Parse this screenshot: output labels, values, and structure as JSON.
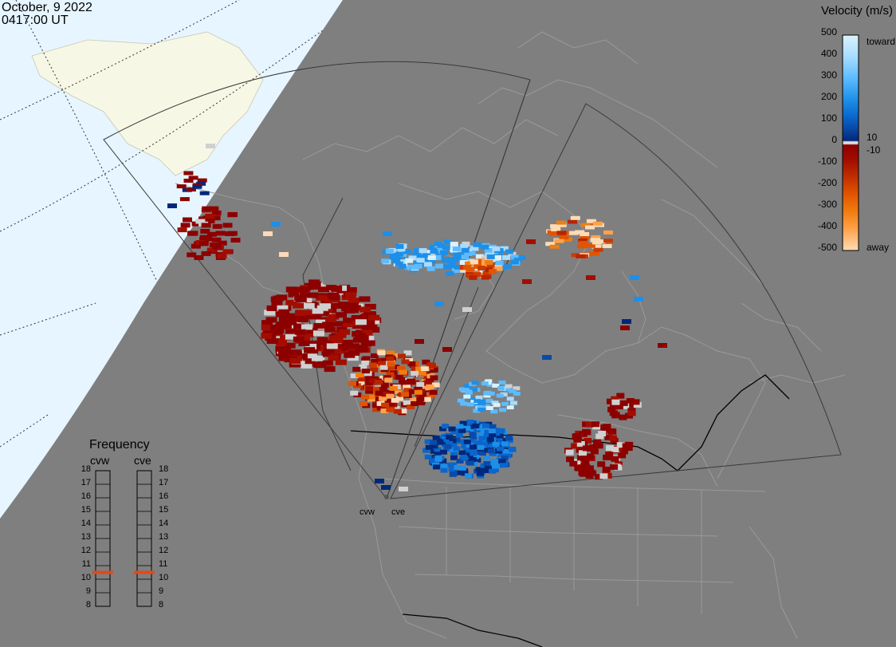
{
  "header": {
    "date": "October, 9 2022",
    "time": "0417:00 UT"
  },
  "colors": {
    "background_ocean": "#e6f5ff",
    "land_day": "#f7f7e6",
    "night_shade": "#7f7f7f",
    "boundary": "#9a9a9a",
    "fov": "#444444",
    "ground_scatter": "#d0d0d0",
    "frequency_marker": "#e04a1a"
  },
  "velocity_legend": {
    "title": "Velocity (m/s)",
    "ticks": [
      "500",
      "400",
      "300",
      "200",
      "100",
      "0",
      "-100",
      "-200",
      "-300",
      "-400",
      "-500"
    ],
    "right_labels": {
      "toward": "toward",
      "plus10": "10",
      "minus10": "-10",
      "away": "away"
    },
    "colorscale": [
      "#d9f2ff",
      "#a8dcff",
      "#5cbcff",
      "#1e8fe8",
      "#0a66cc",
      "#0a4aaa",
      "#00287a",
      "#8c0000",
      "#a30d00",
      "#b82400",
      "#cc3a00",
      "#e25500",
      "#f07d10",
      "#ffa24a",
      "#ffdbb5"
    ]
  },
  "frequency_panel": {
    "title": "Frequency",
    "radars": [
      {
        "name": "cvw",
        "current_mhz": 10.5
      },
      {
        "name": "cve",
        "current_mhz": 10.5
      }
    ],
    "ticks": [
      "18",
      "17",
      "16",
      "15",
      "14",
      "13",
      "12",
      "11",
      "10",
      "9",
      "8"
    ]
  },
  "sites": [
    {
      "name": "cvw"
    },
    {
      "name": "cve"
    }
  ]
}
